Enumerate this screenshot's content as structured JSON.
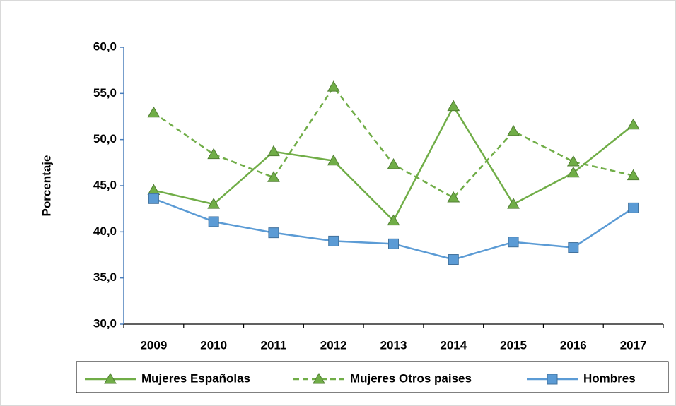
{
  "chart_data": {
    "type": "line",
    "y_label": "Porcentaje",
    "categories": [
      "2009",
      "2010",
      "2011",
      "2012",
      "2013",
      "2014",
      "2015",
      "2016",
      "2017"
    ],
    "series": [
      {
        "name": "Mujeres Españolas",
        "color": "#70ad47",
        "marker": "triangle",
        "line_style": "solid",
        "values": [
          44.5,
          43.0,
          48.7,
          47.7,
          41.2,
          53.6,
          43.0,
          46.4,
          51.6
        ]
      },
      {
        "name": "Mujeres Otros paises",
        "color": "#70ad47",
        "marker": "triangle",
        "line_style": "dashed",
        "values": [
          52.9,
          48.4,
          45.9,
          55.7,
          47.3,
          43.7,
          50.9,
          47.6,
          46.1
        ]
      },
      {
        "name": "Hombres",
        "color": "#5b9bd5",
        "marker": "square",
        "line_style": "solid",
        "values": [
          43.6,
          41.1,
          39.9,
          39.0,
          38.7,
          37.0,
          38.9,
          38.3,
          42.6
        ]
      }
    ],
    "ylim": [
      30,
      60
    ],
    "yticks": [
      {
        "value": 30,
        "label": "30,0"
      },
      {
        "value": 35,
        "label": "35,0"
      },
      {
        "value": 40,
        "label": "40,0"
      },
      {
        "value": 45,
        "label": "45,0"
      },
      {
        "value": 50,
        "label": "50,0"
      },
      {
        "value": 55,
        "label": "55,0"
      },
      {
        "value": 60,
        "label": "60,0"
      }
    ],
    "grid": false,
    "legend": "bottom"
  }
}
